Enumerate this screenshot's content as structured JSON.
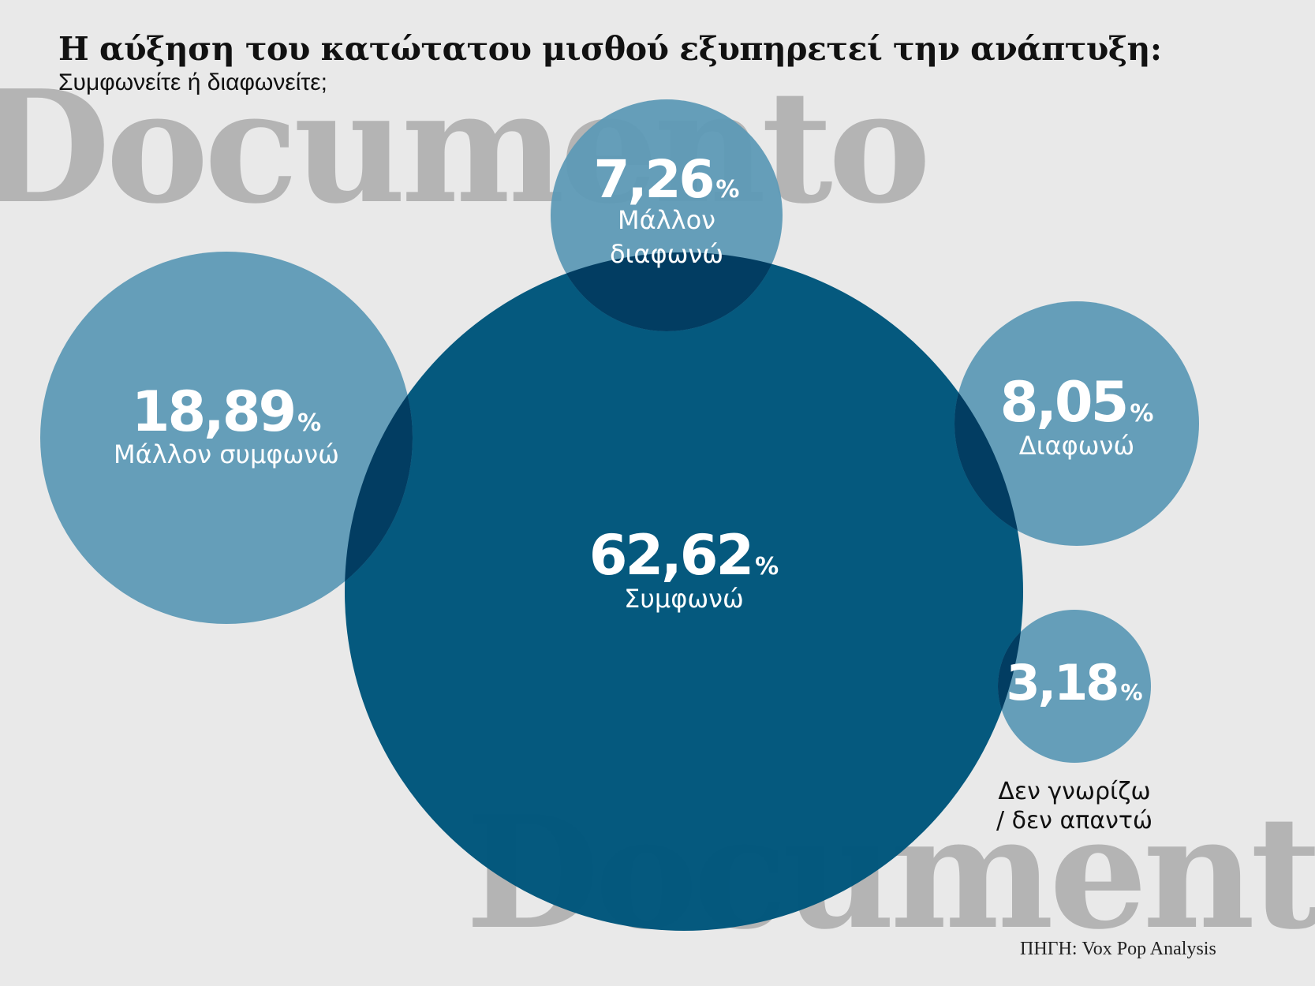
{
  "header": {
    "title": "Η αύξηση του κατώτατου μισθού εξυπηρετεί την ανάπτυξη:",
    "subtitle": "Συμφωνείτε ή διαφωνείτε;"
  },
  "watermark": {
    "text": "Documento"
  },
  "footer": {
    "source": "ΠΗΓΗ: Vox Pop Analysis"
  },
  "colors": {
    "background": "#e9e9e9",
    "dark_circle": "#02577c",
    "light_circle": "#5f9ab6",
    "overlap": "#023d62"
  },
  "chart_data": {
    "type": "bubble",
    "title": "Η αύξηση του κατώτατου μισθού εξυπηρετεί την ανάπτυξη:",
    "subtitle": "Συμφωνείτε ή διαφωνείτε;",
    "unit": "%",
    "series": [
      {
        "name": "Συμφωνώ",
        "value_label": "62,62",
        "value": 62.62,
        "label_lines": [
          "Συμφωνώ"
        ]
      },
      {
        "name": "Μάλλον συμφωνώ",
        "value_label": "18,89",
        "value": 18.89,
        "label_lines": [
          "Μάλλον συμφωνώ"
        ]
      },
      {
        "name": "Μάλλον διαφωνώ",
        "value_label": "7,26",
        "value": 7.26,
        "label_lines": [
          "Μάλλον",
          "διαφωνώ"
        ]
      },
      {
        "name": "Διαφωνώ",
        "value_label": "8,05",
        "value": 8.05,
        "label_lines": [
          "Διαφωνώ"
        ]
      },
      {
        "name": "Δεν γνωρίζω / δεν απαντώ",
        "value_label": "3,18",
        "value": 3.18,
        "label_lines": [
          "Δεν γνωρίζω",
          "/ δεν απαντώ"
        ]
      }
    ]
  }
}
